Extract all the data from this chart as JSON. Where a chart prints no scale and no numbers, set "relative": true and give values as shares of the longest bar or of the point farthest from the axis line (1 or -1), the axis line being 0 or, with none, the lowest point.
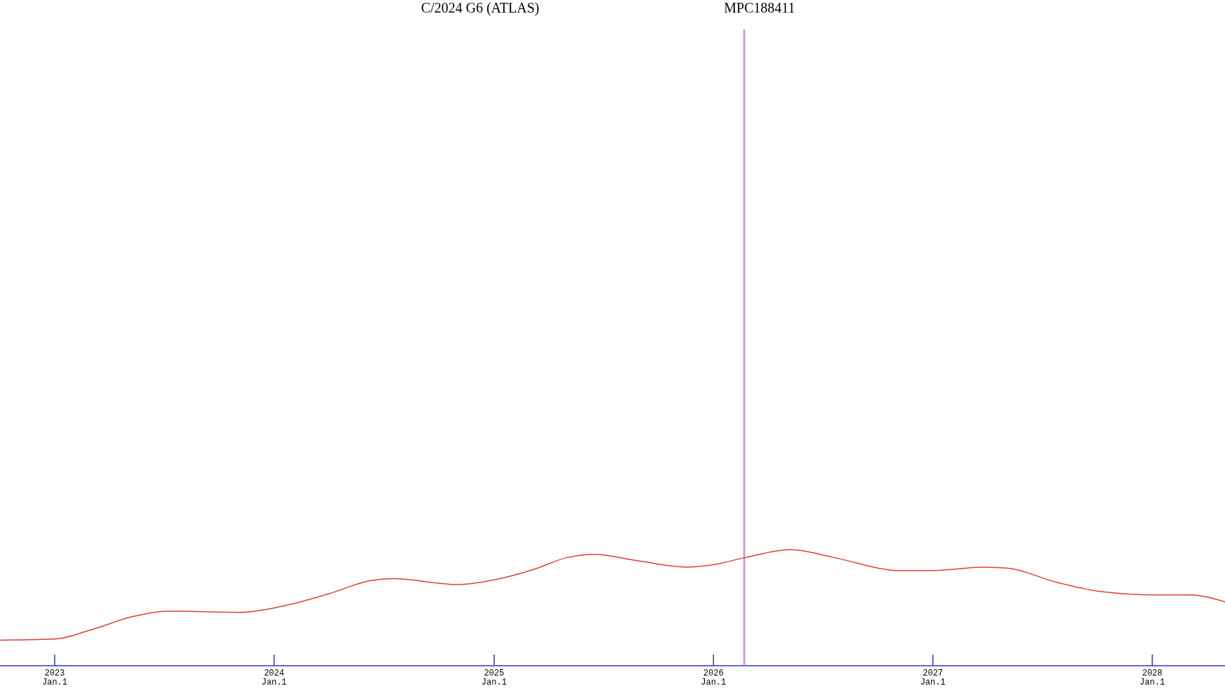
{
  "chart_data": {
    "type": "line",
    "title": "C/2024 G6 (ATLAS)",
    "relative": true,
    "x": [
      "2022-10-02",
      "2023-01-01",
      "2023-03-03",
      "2023-05-08",
      "2023-07-08",
      "2023-11-05",
      "2024-01-12",
      "2024-04-01",
      "2024-06-07",
      "2024-07-17",
      "2024-11-01",
      "2025-01-01",
      "2025-03-08",
      "2025-05-01",
      "2025-06-17",
      "2025-08-22",
      "2025-11-17",
      "2026-01-01",
      "2026-02-21",
      "2026-05-10",
      "2026-07-22",
      "2026-11-06",
      "2026-12-30",
      "2027-03-27",
      "2027-05-06",
      "2027-07-25",
      "2027-10-06",
      "2028-01-09",
      "2028-03-03",
      "2028-05-01"
    ],
    "series": [
      {
        "color": "#e03c3c",
        "values": [
          0.22,
          0.23,
          0.31,
          0.42,
          0.47,
          0.46,
          0.51,
          0.62,
          0.73,
          0.75,
          0.7,
          0.74,
          0.83,
          0.93,
          0.96,
          0.91,
          0.85,
          0.87,
          0.93,
          1,
          0.93,
          0.82,
          0.82,
          0.85,
          0.84,
          0.72,
          0.64,
          0.61,
          0.61,
          0.55
        ]
      }
    ],
    "xlim": [
      "2022-10-02",
      "2028-05-01"
    ],
    "xticks": [
      {
        "value": "2023-01-01",
        "label": "2023\nJan.1"
      },
      {
        "value": "2024-01-01",
        "label": "2024\nJan.1"
      },
      {
        "value": "2025-01-01",
        "label": "2025\nJan.1"
      },
      {
        "value": "2026-01-01",
        "label": "2026\nJan.1"
      },
      {
        "value": "2027-01-01",
        "label": "2027\nJan.1"
      },
      {
        "value": "2028-01-01",
        "label": "2028\nJan.1"
      }
    ],
    "ref_lines": [
      {
        "axis": "x",
        "value": "2026-02-21",
        "label": "MPC188411",
        "color": "#e070e0"
      }
    ]
  }
}
